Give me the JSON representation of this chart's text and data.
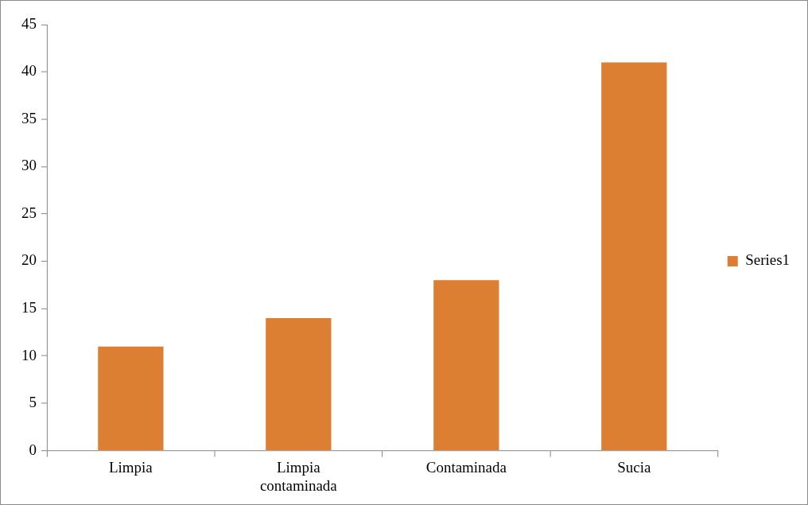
{
  "chart_data": {
    "type": "bar",
    "categories": [
      "Limpia",
      "Limpia contaminada",
      "Contaminada",
      "Sucia"
    ],
    "series": [
      {
        "name": "Series1",
        "color": "#dd7f33",
        "values": [
          11,
          14,
          18,
          41
        ]
      }
    ],
    "ylim": [
      0,
      45
    ],
    "yticks": [
      0,
      5,
      10,
      15,
      20,
      25,
      30,
      35,
      40,
      45
    ],
    "grid": false,
    "legend": "right"
  }
}
